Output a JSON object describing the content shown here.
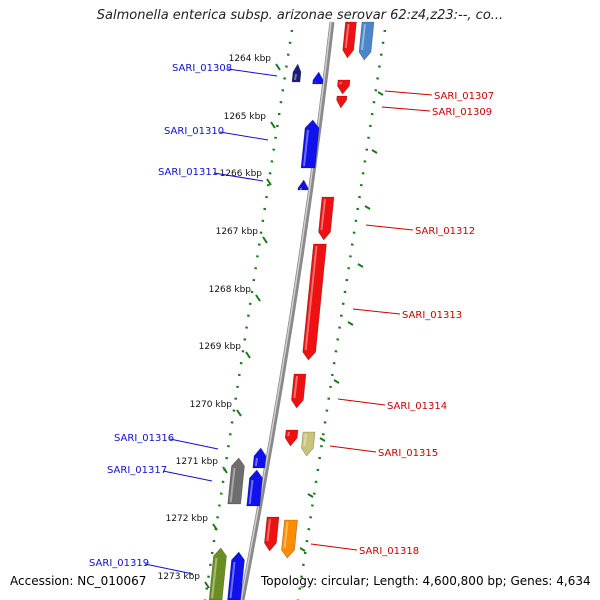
{
  "title": "Salmonella enterica subsp. arizonae serovar 62:z4,z23:--, co...",
  "footer": {
    "accession": "Accession: NC_010067",
    "topology": "Topology: circular; Length: 4,600,800 bp; Genes: 4,634"
  },
  "colors": {
    "plus_strand_label": "#1010cc",
    "minus_strand_label": "#cc0000",
    "backbone": "#8a8a8a",
    "track_dots": "#1a7a1a"
  },
  "ticks": [
    "1264 kbp",
    "1265 kbp",
    "1266 kbp",
    "1267 kbp",
    "1268 kbp",
    "1269 kbp",
    "1270 kbp",
    "1271 kbp",
    "1272 kbp",
    "1273 kbp"
  ],
  "gene_labels": {
    "left": [
      "SARI_01308",
      "SARI_01310",
      "SARI_01311",
      "SARI_01316",
      "SARI_01317",
      "SARI_01319"
    ],
    "right": [
      "SARI_01307",
      "SARI_01309",
      "SARI_01312",
      "SARI_01313",
      "SARI_01314",
      "SARI_01315",
      "SARI_01318"
    ]
  },
  "gene_colors": {
    "red": "#ee1111",
    "blue": "#1111ee",
    "steel": "#4a86c8",
    "navy": "#1c1c7a",
    "gray": "#6e6e6e",
    "olive": "#6b8e23",
    "khaki": "#c8c27a",
    "orange": "#ff8c00"
  }
}
